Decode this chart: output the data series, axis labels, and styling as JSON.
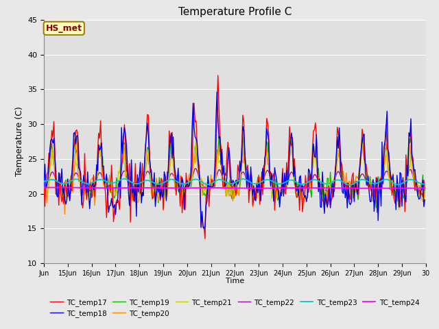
{
  "title": "Temperature Profile C",
  "xlabel": "Time",
  "ylabel": "Temperature (C)",
  "ylim": [
    10,
    45
  ],
  "xlim": [
    0,
    384
  ],
  "annotation_text": "HS_met",
  "annotation_color": "#8B0000",
  "annotation_bg": "#FFFFC0",
  "annotation_border": "#A08000",
  "fig_bg": "#E8E8E8",
  "plot_bg": "#E0E0E0",
  "grid_color": "#ffffff",
  "tick_labels": [
    "Jun",
    "15Jun",
    "16Jun",
    "17Jun",
    "18Jun",
    "19Jun",
    "20Jun",
    "21Jun",
    "22Jun",
    "23Jun",
    "24Jun",
    "25Jun",
    "26Jun",
    "27Jun",
    "28Jun",
    "29Jun",
    "30"
  ],
  "series_colors": {
    "TC_temp17": "#FF0000",
    "TC_temp18": "#0000EE",
    "TC_temp19": "#00BB00",
    "TC_temp20": "#FF8800",
    "TC_temp21": "#CCCC00",
    "TC_temp22": "#AA00AA",
    "TC_temp23": "#00CCCC",
    "TC_temp24": "#FF00FF"
  },
  "legend_entries": [
    "TC_temp17",
    "TC_temp18",
    "TC_temp19",
    "TC_temp20",
    "TC_temp21",
    "TC_temp22",
    "TC_temp23",
    "TC_temp24"
  ]
}
